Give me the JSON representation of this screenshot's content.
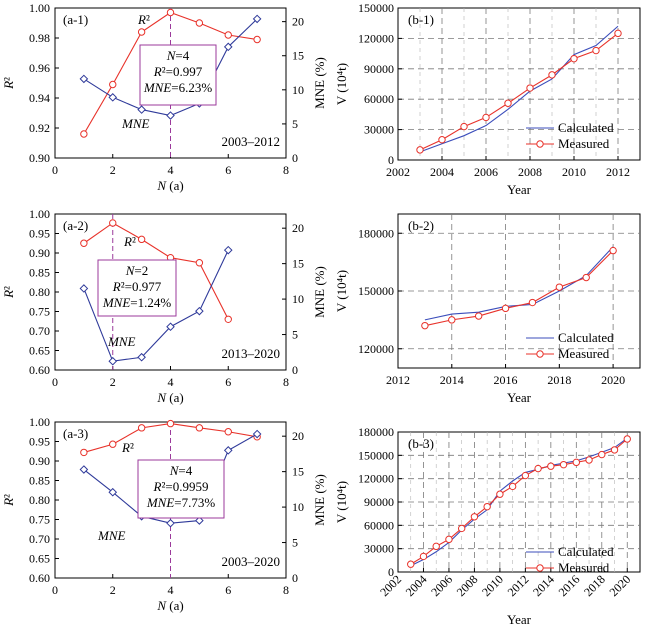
{
  "colors": {
    "r2": "#e8322a",
    "mne": "#2f3a9a",
    "calc": "#3b4dbb",
    "meas": "#e8322a",
    "ann": "#9b3a9b",
    "grid": "#7a7a7a"
  },
  "chart_data": [
    {
      "id": "a1",
      "type": "line",
      "panel_label": "(a-1)",
      "period": "2003–2012",
      "xlabel": "N (a)",
      "ylabel_left": "R²",
      "ylabel_right": "MNE (%)",
      "xlim": [
        0,
        8
      ],
      "xticks": [
        0,
        2,
        4,
        6,
        8
      ],
      "ylim_left": [
        0.9,
        1.0
      ],
      "yticks_left": [
        "0.90",
        "0.92",
        "0.94",
        "0.96",
        "0.98",
        "1.00"
      ],
      "ylim_right": [
        0,
        22
      ],
      "yticks_right": [
        "0",
        "5",
        "10",
        "15",
        "20"
      ],
      "series": [
        {
          "name": "R²",
          "axis": "left",
          "x": [
            1,
            2,
            3,
            4,
            5,
            6,
            7
          ],
          "values": [
            0.916,
            0.949,
            0.984,
            0.997,
            0.99,
            0.982,
            0.979
          ]
        },
        {
          "name": "MNE",
          "axis": "right",
          "x": [
            1,
            2,
            3,
            4,
            5,
            6,
            7
          ],
          "values": [
            11.6,
            8.9,
            7.1,
            6.23,
            8.0,
            16.3,
            20.4
          ]
        }
      ],
      "marker_x": 4,
      "annotation": [
        "N=4",
        "R²=0.997",
        "MNE=6.23%"
      ]
    },
    {
      "id": "a2",
      "type": "line",
      "panel_label": "(a-2)",
      "period": "2013–2020",
      "xlabel": "N (a)",
      "ylabel_left": "R²",
      "ylabel_right": "MNE (%)",
      "xlim": [
        0,
        8
      ],
      "xticks": [
        0,
        2,
        4,
        6,
        8
      ],
      "ylim_left": [
        0.6,
        1.0
      ],
      "yticks_left": [
        "0.60",
        "0.65",
        "0.70",
        "0.75",
        "0.80",
        "0.85",
        "0.90",
        "0.95",
        "1.00"
      ],
      "ylim_right": [
        0,
        22
      ],
      "yticks_right": [
        "0",
        "5",
        "10",
        "15",
        "20"
      ],
      "series": [
        {
          "name": "R²",
          "axis": "left",
          "x": [
            1,
            2,
            3,
            4,
            5,
            6
          ],
          "values": [
            0.925,
            0.977,
            0.935,
            0.888,
            0.875,
            0.73
          ]
        },
        {
          "name": "MNE",
          "axis": "right",
          "x": [
            1,
            2,
            3,
            4,
            5,
            6
          ],
          "values": [
            11.5,
            1.24,
            1.8,
            6.1,
            8.3,
            16.9
          ]
        }
      ],
      "marker_x": 2,
      "annotation": [
        "N=2",
        "R²=0.977",
        "MNE=1.24%"
      ]
    },
    {
      "id": "a3",
      "type": "line",
      "panel_label": "(a-3)",
      "period": "2003–2020",
      "xlabel": "N (a)",
      "ylabel_left": "R²",
      "ylabel_right": "MNE (%)",
      "xlim": [
        0,
        8
      ],
      "xticks": [
        0,
        2,
        4,
        6,
        8
      ],
      "ylim_left": [
        0.6,
        1.0
      ],
      "yticks_left": [
        "0.60",
        "0.65",
        "0.70",
        "0.75",
        "0.80",
        "0.85",
        "0.90",
        "0.95",
        "1.00"
      ],
      "ylim_right": [
        0,
        22
      ],
      "yticks_right": [
        "0",
        "5",
        "10",
        "15",
        "20"
      ],
      "series": [
        {
          "name": "R²",
          "axis": "left",
          "x": [
            1,
            2,
            3,
            4,
            5,
            6,
            7
          ],
          "values": [
            0.922,
            0.943,
            0.985,
            0.9959,
            0.985,
            0.975,
            0.962
          ]
        },
        {
          "name": "MNE",
          "axis": "right",
          "x": [
            1,
            2,
            3,
            4,
            5,
            6,
            7
          ],
          "values": [
            15.3,
            12.1,
            8.7,
            7.73,
            8.1,
            18.0,
            20.3
          ]
        }
      ],
      "marker_x": 4,
      "annotation": [
        "N=4",
        "R²=0.9959",
        "MNE=7.73%"
      ]
    },
    {
      "id": "b1",
      "type": "line",
      "panel_label": "(b-1)",
      "xlabel": "Year",
      "ylabel": "V (10⁴t)",
      "xlim": [
        2002,
        2013
      ],
      "xticks": [
        2002,
        2004,
        2006,
        2008,
        2010,
        2012
      ],
      "ylim": [
        0,
        150000
      ],
      "yticks": [
        0,
        30000,
        60000,
        90000,
        120000,
        150000
      ],
      "series": [
        {
          "name": "Calculated",
          "x": [
            2003,
            2004,
            2005,
            2006,
            2007,
            2008,
            2009,
            2010,
            2011,
            2012
          ],
          "values": [
            8000,
            16000,
            24000,
            34000,
            50000,
            68000,
            80000,
            104000,
            113000,
            132000
          ]
        },
        {
          "name": "Measured",
          "x": [
            2003,
            2004,
            2005,
            2006,
            2007,
            2008,
            2009,
            2010,
            2011,
            2012
          ],
          "values": [
            10000,
            20000,
            33000,
            42000,
            56000,
            71000,
            84000,
            100000,
            108000,
            125000
          ]
        }
      ]
    },
    {
      "id": "b2",
      "type": "line",
      "panel_label": "(b-2)",
      "xlabel": "Year",
      "ylabel": "V (10⁴t)",
      "xlim": [
        2012,
        2021
      ],
      "xticks": [
        2012,
        2014,
        2016,
        2018,
        2020
      ],
      "ylim": [
        110000,
        190000
      ],
      "yticks": [
        120000,
        150000,
        180000
      ],
      "series": [
        {
          "name": "Calculated",
          "x": [
            2013,
            2014,
            2015,
            2016,
            2017,
            2018,
            2019,
            2020
          ],
          "values": [
            135000,
            138000,
            139000,
            142000,
            143000,
            150000,
            158000,
            173000
          ]
        },
        {
          "name": "Measured",
          "x": [
            2013,
            2014,
            2015,
            2016,
            2017,
            2018,
            2019,
            2020
          ],
          "values": [
            132000,
            135000,
            137000,
            141000,
            144000,
            152000,
            157000,
            171000
          ]
        }
      ]
    },
    {
      "id": "b3",
      "type": "line",
      "panel_label": "(b-3)",
      "xlabel": "Year",
      "ylabel": "V (10⁴t)",
      "xlim": [
        2002,
        2021
      ],
      "xticks": [
        2002,
        2004,
        2006,
        2008,
        2010,
        2012,
        2014,
        2016,
        2018,
        2020
      ],
      "ylim": [
        0,
        180000
      ],
      "yticks": [
        0,
        30000,
        60000,
        90000,
        120000,
        150000,
        180000
      ],
      "series": [
        {
          "name": "Calculated",
          "x": [
            2003,
            2004,
            2005,
            2006,
            2007,
            2008,
            2009,
            2010,
            2011,
            2012,
            2013,
            2014,
            2015,
            2016,
            2017,
            2018,
            2019,
            2020
          ],
          "values": [
            8000,
            16000,
            26000,
            38000,
            54000,
            68000,
            80000,
            104000,
            117000,
            128000,
            132000,
            137000,
            140000,
            143000,
            148000,
            154000,
            160000,
            172000
          ]
        },
        {
          "name": "Measured",
          "x": [
            2003,
            2004,
            2005,
            2006,
            2007,
            2008,
            2009,
            2010,
            2011,
            2012,
            2013,
            2014,
            2015,
            2016,
            2017,
            2018,
            2019,
            2020
          ],
          "values": [
            10000,
            20000,
            33000,
            42000,
            56000,
            71000,
            84000,
            100000,
            110000,
            124000,
            133000,
            136000,
            138000,
            141000,
            144000,
            151000,
            157000,
            171000
          ]
        }
      ]
    }
  ]
}
